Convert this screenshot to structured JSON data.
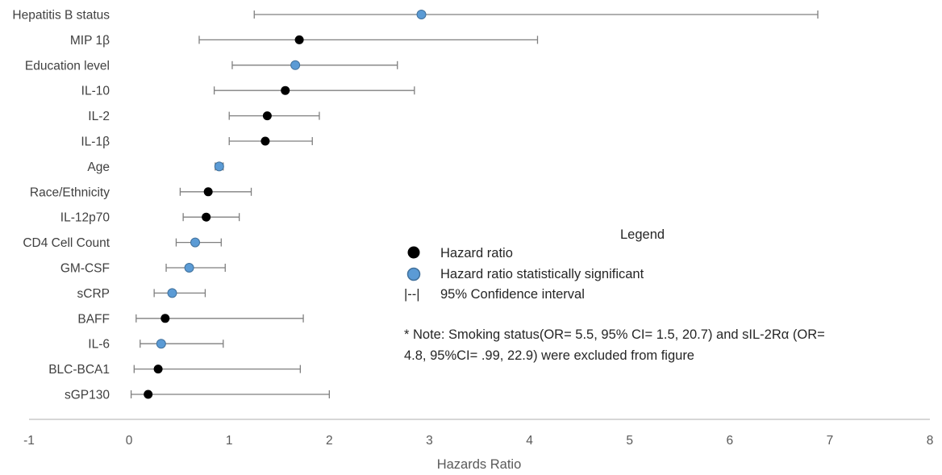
{
  "chart_data": {
    "type": "scatter",
    "orientation": "horizontal-forest",
    "xlabel": "Hazards Ratio",
    "xlim": [
      -1,
      8
    ],
    "xticks": [
      -1,
      0,
      1,
      2,
      3,
      4,
      5,
      6,
      7,
      8
    ],
    "rows": [
      {
        "label": "Hepatitis B status",
        "hr": 2.92,
        "lo": 1.25,
        "hi": 6.88,
        "significant": true
      },
      {
        "label": "MIP 1β",
        "hr": 1.7,
        "lo": 0.7,
        "hi": 4.08,
        "significant": false
      },
      {
        "label": "Education level",
        "hr": 1.66,
        "lo": 1.03,
        "hi": 2.68,
        "significant": true
      },
      {
        "label": "IL-10",
        "hr": 1.56,
        "lo": 0.85,
        "hi": 2.85,
        "significant": false
      },
      {
        "label": "IL-2",
        "hr": 1.38,
        "lo": 1.0,
        "hi": 1.9,
        "significant": false
      },
      {
        "label": "IL-1β",
        "hr": 1.36,
        "lo": 1.0,
        "hi": 1.83,
        "significant": false
      },
      {
        "label": "Age",
        "hr": 0.9,
        "lo": 0.86,
        "hi": 0.94,
        "significant": true
      },
      {
        "label": "Race/Ethnicity",
        "hr": 0.79,
        "lo": 0.51,
        "hi": 1.22,
        "significant": false
      },
      {
        "label": "IL-12p70",
        "hr": 0.77,
        "lo": 0.54,
        "hi": 1.1,
        "significant": false
      },
      {
        "label": "CD4 Cell Count",
        "hr": 0.66,
        "lo": 0.47,
        "hi": 0.92,
        "significant": true
      },
      {
        "label": "GM-CSF",
        "hr": 0.6,
        "lo": 0.37,
        "hi": 0.96,
        "significant": true
      },
      {
        "label": "sCRP",
        "hr": 0.43,
        "lo": 0.25,
        "hi": 0.76,
        "significant": true
      },
      {
        "label": "BAFF",
        "hr": 0.36,
        "lo": 0.07,
        "hi": 1.74,
        "significant": false
      },
      {
        "label": "IL-6",
        "hr": 0.32,
        "lo": 0.11,
        "hi": 0.94,
        "significant": true
      },
      {
        "label": "BLC-BCA1",
        "hr": 0.29,
        "lo": 0.05,
        "hi": 1.71,
        "significant": false
      },
      {
        "label": "sGP130",
        "hr": 0.19,
        "lo": 0.02,
        "hi": 2.0,
        "significant": false
      }
    ],
    "legend": {
      "title": "Legend",
      "entries": [
        {
          "symbol": "black-dot",
          "label": "Hazard ratio"
        },
        {
          "symbol": "blue-dot",
          "label": "Hazard ratio statistically significant"
        },
        {
          "symbol": "|--|",
          "label": "95% Confidence interval"
        }
      ]
    },
    "note_lines": [
      "* Note: Smoking status(OR= 5.5, 95% CI= 1.5, 20.7)  and sIL-2Rα (OR=",
      "4.8, 95%CI= .99, 22.9) were excluded from figure"
    ],
    "colors": {
      "regular": "#000000",
      "significant": "#5b9bd5",
      "significant_outline": "#41719c",
      "error_bar": "#7f7f7f",
      "axis": "#bfbfbf"
    }
  }
}
